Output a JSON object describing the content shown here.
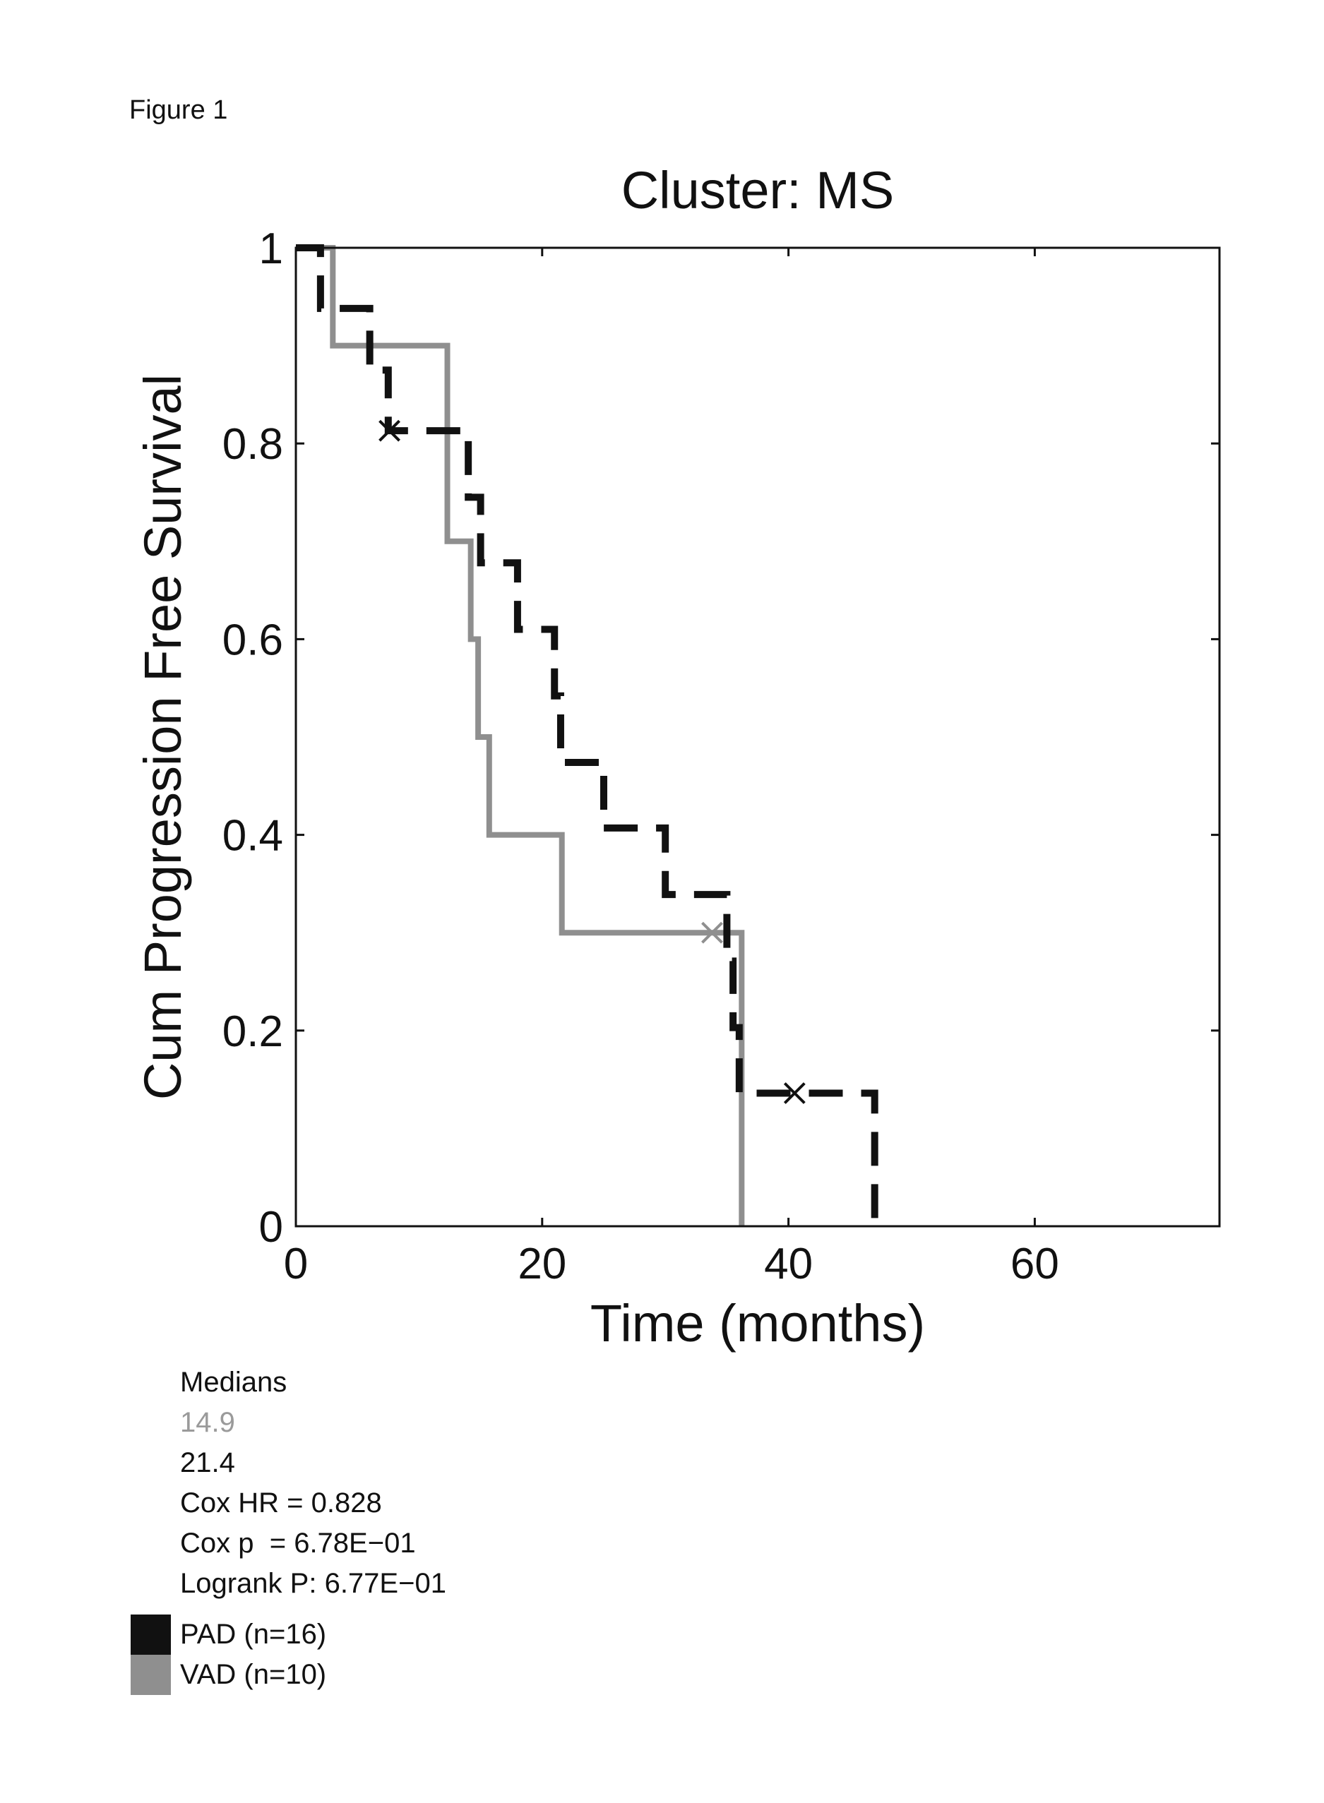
{
  "figure_label": "Figure 1",
  "colors": {
    "PAD": "#111111",
    "VAD": "#8f8f8f",
    "axis": "#111111"
  },
  "stats": {
    "heading": "Medians",
    "median_vad": "14.9",
    "median_pad": "21.4",
    "cox_hr": "Cox HR = 0.828",
    "cox_p": "Cox p  = 6.78E−01",
    "logrank": "Logrank P: 6.77E−01"
  },
  "legend": [
    {
      "label": "PAD (n=16)",
      "color": "#111111"
    },
    {
      "label": "VAD (n=10)",
      "color": "#8f8f8f"
    }
  ],
  "chart_data": {
    "type": "line",
    "title": "Cluster: MS",
    "xlabel": "Time (months)",
    "ylabel": "Cum Progression Free Survival",
    "xlim": [
      0,
      75
    ],
    "ylim": [
      0,
      1
    ],
    "xticks": [
      0,
      20,
      40,
      60
    ],
    "yticks": [
      0,
      0.2,
      0.4,
      0.6,
      0.8,
      1
    ],
    "ytick_labels": [
      "0",
      "0.2",
      "0.4",
      "0.6",
      "0.8",
      "1"
    ],
    "grid": false,
    "series": [
      {
        "name": "PAD (n=16)",
        "style": "dashed",
        "color": "#111111",
        "x": [
          0,
          2,
          2,
          6,
          6,
          7.5,
          7.5,
          14,
          14,
          15,
          15,
          18,
          18,
          21,
          21,
          21.5,
          21.5,
          25,
          25,
          30,
          30,
          35,
          35,
          35.5,
          35.5,
          36,
          36,
          47,
          47
        ],
        "y": [
          1,
          1,
          0.938,
          0.938,
          0.875,
          0.875,
          0.813,
          0.813,
          0.745,
          0.745,
          0.678,
          0.678,
          0.61,
          0.61,
          0.542,
          0.542,
          0.474,
          0.474,
          0.407,
          0.407,
          0.339,
          0.339,
          0.271,
          0.271,
          0.203,
          0.203,
          0.136,
          0.136,
          0
        ],
        "censored": [
          {
            "x": 7.6,
            "y": 0.813
          },
          {
            "x": 40.5,
            "y": 0.136
          }
        ]
      },
      {
        "name": "VAD (n=10)",
        "style": "solid",
        "color": "#8f8f8f",
        "x": [
          0,
          3,
          3,
          12.3,
          12.3,
          14.2,
          14.2,
          14.8,
          14.8,
          15.7,
          15.7,
          21.6,
          21.6,
          36.2,
          36.2
        ],
        "y": [
          1,
          1,
          0.9,
          0.9,
          0.7,
          0.7,
          0.6,
          0.6,
          0.5,
          0.5,
          0.4,
          0.4,
          0.3,
          0.3,
          0
        ],
        "censored": [
          {
            "x": 33.8,
            "y": 0.3
          }
        ]
      }
    ]
  }
}
